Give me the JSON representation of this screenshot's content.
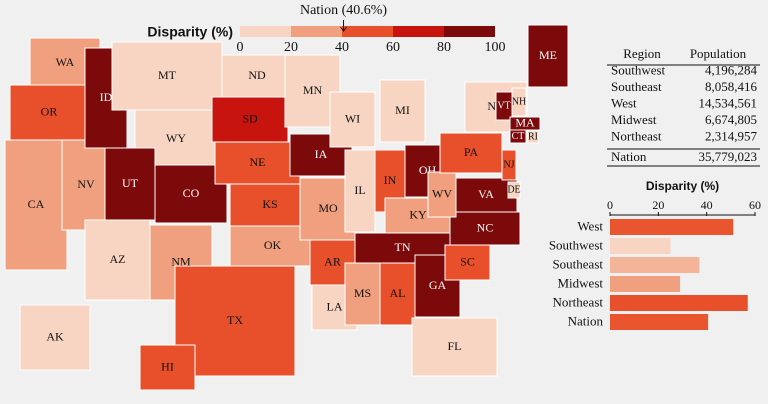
{
  "map": {
    "legend_title": "Disparity (%)",
    "nation_marker": {
      "label": "Nation (40.6%)",
      "value": 40.6
    },
    "scale": {
      "ticks": [
        0,
        20,
        40,
        60,
        80,
        100
      ],
      "colors": [
        "#f8d5c3",
        "#f0a07e",
        "#e8502b",
        "#c8140e",
        "#7c0a0b"
      ]
    },
    "states": [
      {
        "label": "WA",
        "value": 30
      },
      {
        "label": "OR",
        "value": 50
      },
      {
        "label": "CA",
        "value": 30
      },
      {
        "label": "NV",
        "value": 30
      },
      {
        "label": "ID",
        "value": 90
      },
      {
        "label": "MT",
        "value": 10
      },
      {
        "label": "WY",
        "value": 10
      },
      {
        "label": "UT",
        "value": 90
      },
      {
        "label": "CO",
        "value": 90
      },
      {
        "label": "AZ",
        "value": 10
      },
      {
        "label": "NM",
        "value": 30
      },
      {
        "label": "ND",
        "value": 10
      },
      {
        "label": "SD",
        "value": 70
      },
      {
        "label": "NE",
        "value": 50
      },
      {
        "label": "KS",
        "value": 50
      },
      {
        "label": "OK",
        "value": 30
      },
      {
        "label": "TX",
        "value": 50
      },
      {
        "label": "MN",
        "value": 10
      },
      {
        "label": "IA",
        "value": 90
      },
      {
        "label": "MO",
        "value": 30
      },
      {
        "label": "AR",
        "value": 50
      },
      {
        "label": "LA",
        "value": 10
      },
      {
        "label": "WI",
        "value": 10
      },
      {
        "label": "IL",
        "value": 10
      },
      {
        "label": "MI",
        "value": 10
      },
      {
        "label": "IN",
        "value": 50
      },
      {
        "label": "OH",
        "value": 90
      },
      {
        "label": "KY",
        "value": 30
      },
      {
        "label": "TN",
        "value": 90
      },
      {
        "label": "MS",
        "value": 30
      },
      {
        "label": "AL",
        "value": 50
      },
      {
        "label": "GA",
        "value": 90
      },
      {
        "label": "FL",
        "value": 10
      },
      {
        "label": "SC",
        "value": 50
      },
      {
        "label": "NC",
        "value": 90
      },
      {
        "label": "VA",
        "value": 90
      },
      {
        "label": "WV",
        "value": 30
      },
      {
        "label": "PA",
        "value": 50
      },
      {
        "label": "NY",
        "value": 10
      },
      {
        "label": "NJ",
        "value": 50
      },
      {
        "label": "DE",
        "value": 10
      },
      {
        "label": "ME",
        "value": 90
      },
      {
        "label": "NH",
        "value": 10
      },
      {
        "label": "VT",
        "value": 90
      },
      {
        "label": "MA",
        "value": 90
      },
      {
        "label": "CT",
        "value": 90
      },
      {
        "label": "RI",
        "value": 10
      },
      {
        "label": "AK",
        "value": 10
      },
      {
        "label": "HI",
        "value": 50
      }
    ]
  },
  "table": {
    "columns": [
      "Region",
      "Population"
    ],
    "rows": [
      [
        "Southwest",
        "4,196,284"
      ],
      [
        "Southeast",
        "8,058,416"
      ],
      [
        "West",
        "14,534,561"
      ],
      [
        "Midwest",
        "6,674,805"
      ],
      [
        "Northeast",
        "2,314,957"
      ],
      [
        "Nation",
        "35,779,023"
      ]
    ]
  },
  "chart_data": {
    "type": "bar",
    "title": "Disparity (%)",
    "orientation": "horizontal",
    "categories": [
      "West",
      "Southwest",
      "Southeast",
      "Midwest",
      "Northeast",
      "Nation"
    ],
    "values": [
      51,
      25,
      37,
      29,
      57,
      40.6
    ],
    "colors": [
      "#e8552e",
      "#f8d5c3",
      "#f4b497",
      "#f0a07e",
      "#e8502b",
      "#e8552e"
    ],
    "xlim": [
      0,
      60
    ],
    "xticks": [
      0,
      20,
      40,
      60
    ]
  }
}
